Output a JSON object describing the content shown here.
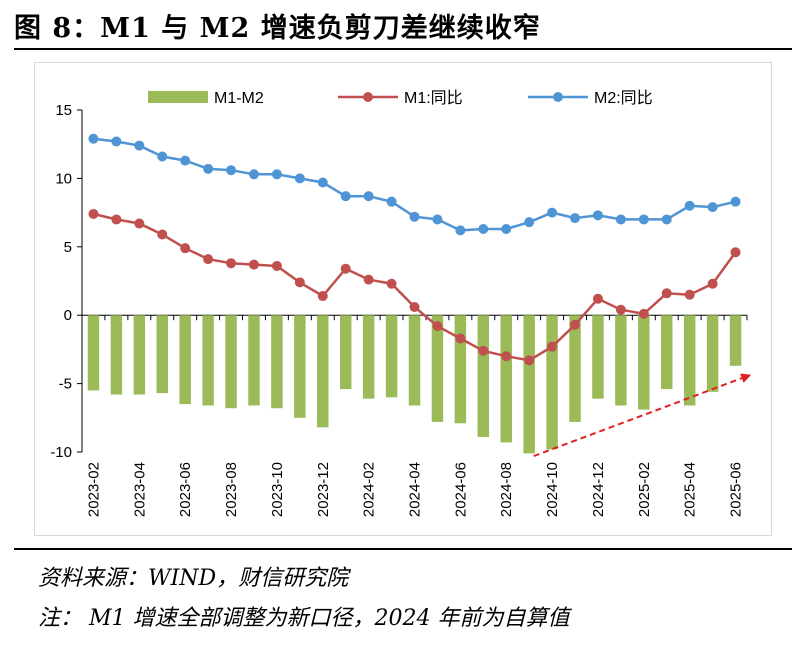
{
  "figure": {
    "title": "图 8：M1 与 M2 增速负剪刀差继续收窄",
    "source_note": "资料来源：WIND，财信研究院",
    "footnote": "注： M1 增速全部调整为新口径，2024 年前为自算值"
  },
  "colors": {
    "bar": "#9bbb59",
    "m1": "#c0504d",
    "m2": "#4f95d5",
    "arrow": "#e02020"
  },
  "chart_data": {
    "type": "bar",
    "categories": [
      "2023-02",
      "2023-03",
      "2023-04",
      "2023-05",
      "2023-06",
      "2023-07",
      "2023-08",
      "2023-09",
      "2023-10",
      "2023-11",
      "2023-12",
      "2024-01",
      "2024-02",
      "2024-03",
      "2024-04",
      "2024-05",
      "2024-06",
      "2024-07",
      "2024-08",
      "2024-09",
      "2024-10",
      "2024-11",
      "2024-12",
      "2025-01",
      "2025-02",
      "2025-03",
      "2025-04",
      "2025-05",
      "2025-06"
    ],
    "x_tick_labels": [
      "2023-02",
      "2023-04",
      "2023-06",
      "2023-08",
      "2023-10",
      "2023-12",
      "2024-02",
      "2024-04",
      "2024-06",
      "2024-08",
      "2024-10",
      "2024-12",
      "2025-02",
      "2025-04",
      "2025-06"
    ],
    "series": [
      {
        "name": "M1-M2",
        "type": "bar",
        "values": [
          -5.5,
          -5.8,
          -5.8,
          -5.7,
          -6.5,
          -6.6,
          -6.8,
          -6.6,
          -6.8,
          -7.5,
          -8.2,
          -5.4,
          -6.1,
          -6.0,
          -6.6,
          -7.8,
          -7.9,
          -8.9,
          -9.3,
          -10.1,
          -9.8,
          -7.8,
          -6.1,
          -6.6,
          -6.9,
          -5.4,
          -6.6,
          -5.6,
          -3.7
        ]
      },
      {
        "name": "M1:同比",
        "type": "line",
        "values": [
          7.4,
          7.0,
          6.7,
          5.9,
          4.9,
          4.1,
          3.8,
          3.7,
          3.6,
          2.4,
          1.4,
          3.4,
          2.6,
          2.3,
          0.6,
          -0.8,
          -1.7,
          -2.6,
          -3.0,
          -3.3,
          -2.3,
          -0.7,
          1.2,
          0.4,
          0.1,
          1.6,
          1.5,
          2.3,
          4.6
        ]
      },
      {
        "name": "M2:同比",
        "type": "line",
        "values": [
          12.9,
          12.7,
          12.4,
          11.6,
          11.3,
          10.7,
          10.6,
          10.3,
          10.3,
          10.0,
          9.7,
          8.7,
          8.7,
          8.3,
          7.2,
          7.0,
          6.2,
          6.3,
          6.3,
          6.8,
          7.5,
          7.1,
          7.3,
          7.0,
          7.0,
          7.0,
          8.0,
          7.9,
          8.3
        ]
      }
    ],
    "ylim": [
      -10,
      15
    ],
    "yticks": [
      -10,
      -5,
      0,
      5,
      10,
      15
    ],
    "grid": false,
    "legend": "top",
    "annotation": {
      "type": "arrow",
      "style": "dashed",
      "from": {
        "x": "2024-09",
        "y": -10.3
      },
      "to": {
        "x": "2025-06",
        "y": -4.4
      }
    }
  }
}
